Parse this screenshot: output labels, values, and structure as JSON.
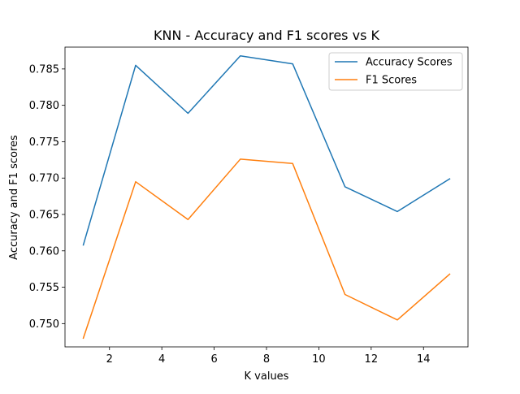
{
  "chart_data": {
    "type": "line",
    "title": "KNN - Accuracy and F1 scores vs K",
    "xlabel": "K values",
    "ylabel": "Accuracy and F1 scores",
    "x": [
      1,
      3,
      5,
      7,
      9,
      11,
      13,
      15
    ],
    "series": [
      {
        "name": "Accuracy Scores",
        "color": "#1f77b4",
        "values": [
          0.7608,
          0.7855,
          0.7789,
          0.7868,
          0.7857,
          0.7688,
          0.7654,
          0.7699
        ]
      },
      {
        "name": "F1 Scores",
        "color": "#ff7f0e",
        "values": [
          0.748,
          0.7695,
          0.7643,
          0.7726,
          0.772,
          0.754,
          0.7505,
          0.7568
        ]
      }
    ],
    "xlim": [
      0.3,
      15.7
    ],
    "ylim": [
      0.7468,
      0.788
    ],
    "xticks": [
      2,
      4,
      6,
      8,
      10,
      12,
      14
    ],
    "yticks": [
      0.75,
      0.755,
      0.76,
      0.765,
      0.77,
      0.775,
      0.78,
      0.785
    ],
    "ytick_labels": [
      "0.750",
      "0.755",
      "0.760",
      "0.765",
      "0.770",
      "0.775",
      "0.780",
      "0.785"
    ],
    "grid": false,
    "legend_position": "top-right"
  }
}
